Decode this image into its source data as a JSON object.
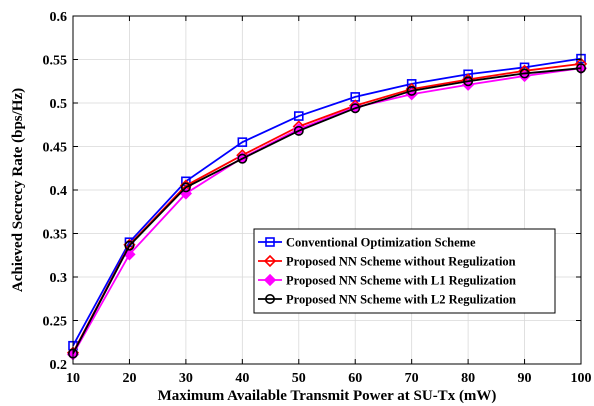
{
  "chart_data": {
    "type": "line",
    "title": "",
    "xlabel": "Maximum Available Transmit Power at SU-Tx (mW)",
    "ylabel": "Achieved Secrecy Rate (bps/Hz)",
    "xlim": [
      10,
      100
    ],
    "ylim": [
      0.2,
      0.6
    ],
    "x": [
      10,
      20,
      30,
      40,
      50,
      60,
      70,
      80,
      90,
      100
    ],
    "x_ticks": [
      10,
      20,
      30,
      40,
      50,
      60,
      70,
      80,
      90,
      100
    ],
    "y_ticks": [
      0.2,
      0.25,
      0.3,
      0.35,
      0.4,
      0.45,
      0.5,
      0.55,
      0.6
    ],
    "grid": true,
    "legend_position": "bottom-right",
    "series": [
      {
        "name": "Conventional Optimization Scheme",
        "color": "#0000ff",
        "marker": "square",
        "values": [
          0.221,
          0.34,
          0.41,
          0.455,
          0.485,
          0.507,
          0.522,
          0.533,
          0.541,
          0.551
        ]
      },
      {
        "name": "Proposed NN Scheme without Regulization",
        "color": "#ff0000",
        "marker": "diamond",
        "values": [
          0.213,
          0.337,
          0.405,
          0.44,
          0.473,
          0.497,
          0.516,
          0.527,
          0.537,
          0.545
        ]
      },
      {
        "name": "Proposed NN Scheme with L1 Regulization",
        "color": "#ff00ff",
        "marker": "filled-diamond",
        "values": [
          0.211,
          0.326,
          0.396,
          0.437,
          0.47,
          0.495,
          0.51,
          0.521,
          0.531,
          0.54
        ]
      },
      {
        "name": "Proposed NN Scheme with L2 Regulization",
        "color": "#000000",
        "marker": "circle",
        "values": [
          0.212,
          0.336,
          0.403,
          0.436,
          0.468,
          0.494,
          0.514,
          0.525,
          0.534,
          0.54
        ]
      }
    ]
  }
}
